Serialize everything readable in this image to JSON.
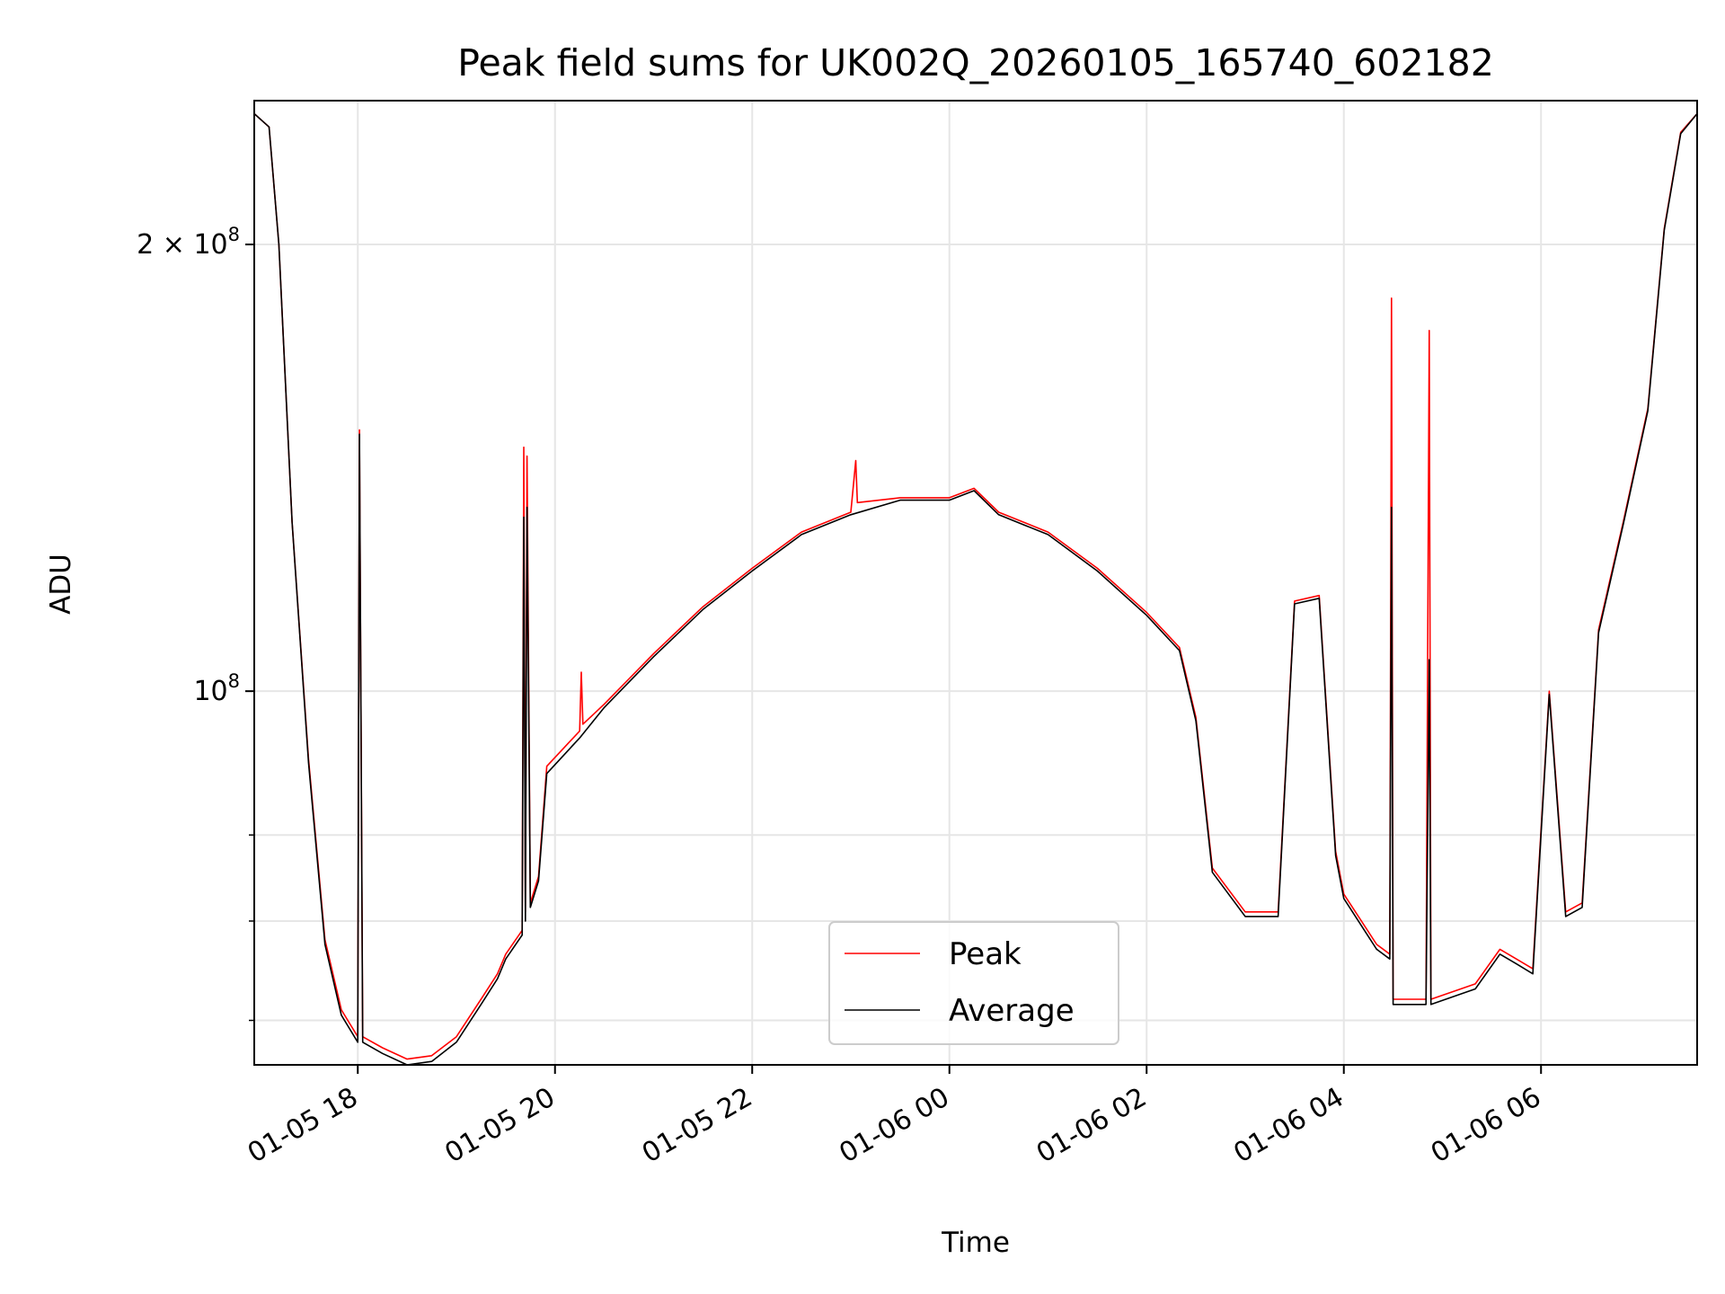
{
  "chart_data": {
    "type": "line",
    "title": "Peak field sums for UK002Q_20260105_165740_602182",
    "xlabel": "Time",
    "ylabel": "ADU",
    "yscale": "log",
    "xlim": [
      "2026-01-05 16:57",
      "2026-01-06 07:35"
    ],
    "ylim": [
      56000000,
      250000000
    ],
    "grid": true,
    "legend_position": "lower center",
    "x_ticks": [
      {
        "value": "2026-01-05 18:00",
        "label": "01-05 18"
      },
      {
        "value": "2026-01-05 20:00",
        "label": "01-05 20"
      },
      {
        "value": "2026-01-05 22:00",
        "label": "01-05 22"
      },
      {
        "value": "2026-01-06 00:00",
        "label": "01-06 00"
      },
      {
        "value": "2026-01-06 02:00",
        "label": "01-06 02"
      },
      {
        "value": "2026-01-06 04:00",
        "label": "01-06 04"
      },
      {
        "value": "2026-01-06 06:00",
        "label": "01-06 06"
      }
    ],
    "y_major_ticks": [
      {
        "value": 100000000,
        "base": "10",
        "exp": "8",
        "coef": ""
      },
      {
        "value": 200000000,
        "base": "10",
        "exp": "8",
        "coef": "2 × "
      }
    ],
    "y_minor_ticks": [
      60000000,
      70000000,
      80000000
    ],
    "series": [
      {
        "name": "Peak",
        "color": "#ff0000",
        "points": [
          [
            "2026-01-05 16:57",
            245000000
          ],
          [
            "2026-01-05 17:06",
            240000000
          ],
          [
            "2026-01-05 17:12",
            200000000
          ],
          [
            "2026-01-05 17:20",
            130000000
          ],
          [
            "2026-01-05 17:30",
            90000000
          ],
          [
            "2026-01-05 17:40",
            68000000
          ],
          [
            "2026-01-05 17:50",
            61000000
          ],
          [
            "2026-01-05 18:00",
            58500000
          ],
          [
            "2026-01-05 18:01",
            150000000
          ],
          [
            "2026-01-05 18:03",
            58500000
          ],
          [
            "2026-01-05 18:15",
            57500000
          ],
          [
            "2026-01-05 18:30",
            56500000
          ],
          [
            "2026-01-05 18:45",
            56800000
          ],
          [
            "2026-01-05 19:00",
            58500000
          ],
          [
            "2026-01-05 19:15",
            62000000
          ],
          [
            "2026-01-05 19:25",
            64500000
          ],
          [
            "2026-01-05 19:30",
            66500000
          ],
          [
            "2026-01-05 19:40",
            69000000
          ],
          [
            "2026-01-05 19:41",
            146000000
          ],
          [
            "2026-01-05 19:42",
            71000000
          ],
          [
            "2026-01-05 19:43",
            144000000
          ],
          [
            "2026-01-05 19:45",
            72000000
          ],
          [
            "2026-01-05 19:50",
            75000000
          ],
          [
            "2026-01-05 19:55",
            89000000
          ],
          [
            "2026-01-05 20:15",
            94000000
          ],
          [
            "2026-01-05 20:16",
            103000000
          ],
          [
            "2026-01-05 20:17",
            95000000
          ],
          [
            "2026-01-05 20:30",
            98000000
          ],
          [
            "2026-01-05 21:00",
            106000000
          ],
          [
            "2026-01-05 21:30",
            114000000
          ],
          [
            "2026-01-05 22:00",
            121000000
          ],
          [
            "2026-01-05 22:30",
            128000000
          ],
          [
            "2026-01-05 23:00",
            132000000
          ],
          [
            "2026-01-05 23:03",
            143000000
          ],
          [
            "2026-01-05 23:04",
            134000000
          ],
          [
            "2026-01-05 23:30",
            135000000
          ],
          [
            "2026-01-06 00:00",
            135000000
          ],
          [
            "2026-01-06 00:15",
            137000000
          ],
          [
            "2026-01-06 00:30",
            132000000
          ],
          [
            "2026-01-06 01:00",
            128000000
          ],
          [
            "2026-01-06 01:30",
            121000000
          ],
          [
            "2026-01-06 02:00",
            113000000
          ],
          [
            "2026-01-06 02:20",
            107000000
          ],
          [
            "2026-01-06 02:30",
            96000000
          ],
          [
            "2026-01-06 02:40",
            76000000
          ],
          [
            "2026-01-06 03:00",
            71000000
          ],
          [
            "2026-01-06 03:20",
            71000000
          ],
          [
            "2026-01-06 03:30",
            115000000
          ],
          [
            "2026-01-06 03:45",
            116000000
          ],
          [
            "2026-01-06 03:55",
            78000000
          ],
          [
            "2026-01-06 04:00",
            73000000
          ],
          [
            "2026-01-06 04:20",
            67500000
          ],
          [
            "2026-01-06 04:28",
            66500000
          ],
          [
            "2026-01-06 04:29",
            184000000
          ],
          [
            "2026-01-06 04:30",
            62000000
          ],
          [
            "2026-01-06 04:50",
            62000000
          ],
          [
            "2026-01-06 04:52",
            175000000
          ],
          [
            "2026-01-06 04:53",
            62000000
          ],
          [
            "2026-01-06 05:20",
            63500000
          ],
          [
            "2026-01-06 05:35",
            67000000
          ],
          [
            "2026-01-06 05:45",
            66000000
          ],
          [
            "2026-01-06 05:55",
            65000000
          ],
          [
            "2026-01-06 06:05",
            100000000
          ],
          [
            "2026-01-06 06:15",
            71000000
          ],
          [
            "2026-01-06 06:25",
            72000000
          ],
          [
            "2026-01-06 06:35",
            110000000
          ],
          [
            "2026-01-06 06:50",
            130000000
          ],
          [
            "2026-01-06 07:05",
            155000000
          ],
          [
            "2026-01-06 07:15",
            205000000
          ],
          [
            "2026-01-06 07:25",
            238000000
          ],
          [
            "2026-01-06 07:35",
            245000000
          ]
        ]
      },
      {
        "name": "Average",
        "color": "#000000",
        "points": [
          [
            "2026-01-05 16:57",
            245000000
          ],
          [
            "2026-01-05 17:06",
            240000000
          ],
          [
            "2026-01-05 17:12",
            200000000
          ],
          [
            "2026-01-05 17:20",
            130000000
          ],
          [
            "2026-01-05 17:30",
            89500000
          ],
          [
            "2026-01-05 17:40",
            67500000
          ],
          [
            "2026-01-05 17:50",
            60500000
          ],
          [
            "2026-01-05 18:00",
            58000000
          ],
          [
            "2026-01-05 18:01",
            149000000
          ],
          [
            "2026-01-05 18:03",
            58000000
          ],
          [
            "2026-01-05 18:15",
            57000000
          ],
          [
            "2026-01-05 18:30",
            56000000
          ],
          [
            "2026-01-05 18:45",
            56300000
          ],
          [
            "2026-01-05 19:00",
            58000000
          ],
          [
            "2026-01-05 19:15",
            61500000
          ],
          [
            "2026-01-05 19:25",
            64000000
          ],
          [
            "2026-01-05 19:30",
            66000000
          ],
          [
            "2026-01-05 19:40",
            68500000
          ],
          [
            "2026-01-05 19:41",
            131000000
          ],
          [
            "2026-01-05 19:42",
            70000000
          ],
          [
            "2026-01-05 19:43",
            133000000
          ],
          [
            "2026-01-05 19:45",
            71500000
          ],
          [
            "2026-01-05 19:50",
            74500000
          ],
          [
            "2026-01-05 19:55",
            88000000
          ],
          [
            "2026-01-05 20:15",
            93000000
          ],
          [
            "2026-01-05 20:30",
            97500000
          ],
          [
            "2026-01-05 21:00",
            105500000
          ],
          [
            "2026-01-05 21:30",
            113500000
          ],
          [
            "2026-01-05 22:00",
            120500000
          ],
          [
            "2026-01-05 22:30",
            127500000
          ],
          [
            "2026-01-05 23:00",
            131500000
          ],
          [
            "2026-01-05 23:30",
            134500000
          ],
          [
            "2026-01-06 00:00",
            134500000
          ],
          [
            "2026-01-06 00:15",
            136500000
          ],
          [
            "2026-01-06 00:30",
            131500000
          ],
          [
            "2026-01-06 01:00",
            127500000
          ],
          [
            "2026-01-06 01:30",
            120500000
          ],
          [
            "2026-01-06 02:00",
            112500000
          ],
          [
            "2026-01-06 02:20",
            106500000
          ],
          [
            "2026-01-06 02:30",
            95500000
          ],
          [
            "2026-01-06 02:40",
            75500000
          ],
          [
            "2026-01-06 03:00",
            70500000
          ],
          [
            "2026-01-06 03:20",
            70500000
          ],
          [
            "2026-01-06 03:30",
            114500000
          ],
          [
            "2026-01-06 03:45",
            115500000
          ],
          [
            "2026-01-06 03:55",
            77500000
          ],
          [
            "2026-01-06 04:00",
            72500000
          ],
          [
            "2026-01-06 04:20",
            67000000
          ],
          [
            "2026-01-06 04:28",
            66000000
          ],
          [
            "2026-01-06 04:29",
            133000000
          ],
          [
            "2026-01-06 04:30",
            61500000
          ],
          [
            "2026-01-06 04:50",
            61500000
          ],
          [
            "2026-01-06 04:52",
            105000000
          ],
          [
            "2026-01-06 04:53",
            61500000
          ],
          [
            "2026-01-06 05:20",
            63000000
          ],
          [
            "2026-01-06 05:35",
            66500000
          ],
          [
            "2026-01-06 05:45",
            65500000
          ],
          [
            "2026-01-06 05:55",
            64500000
          ],
          [
            "2026-01-06 06:05",
            99500000
          ],
          [
            "2026-01-06 06:15",
            70500000
          ],
          [
            "2026-01-06 06:25",
            71500000
          ],
          [
            "2026-01-06 06:35",
            109500000
          ],
          [
            "2026-01-06 06:50",
            129500000
          ],
          [
            "2026-01-06 07:05",
            154500000
          ],
          [
            "2026-01-06 07:15",
            204500000
          ],
          [
            "2026-01-06 07:25",
            237500000
          ],
          [
            "2026-01-06 07:35",
            245000000
          ]
        ]
      }
    ]
  }
}
